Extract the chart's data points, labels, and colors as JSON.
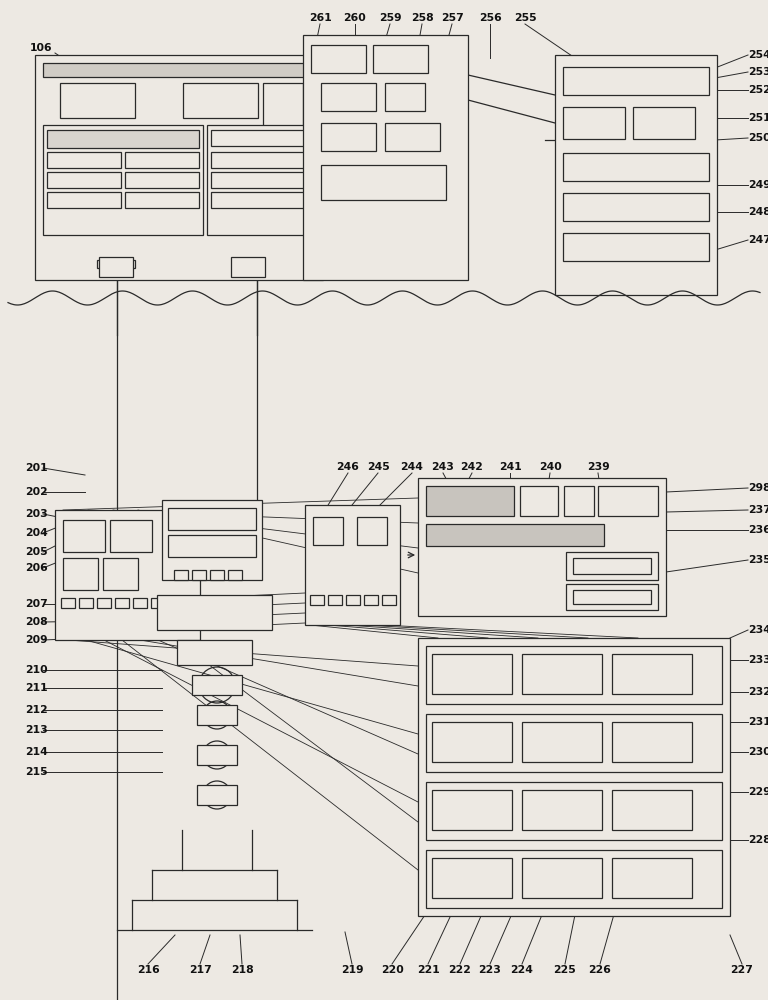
{
  "bg_color": "#ede9e3",
  "line_color": "#2a2a2a",
  "box_fill": "#ede9e3",
  "lw": 0.9,
  "label_fontsize": 7.8,
  "label_color": "#111111"
}
